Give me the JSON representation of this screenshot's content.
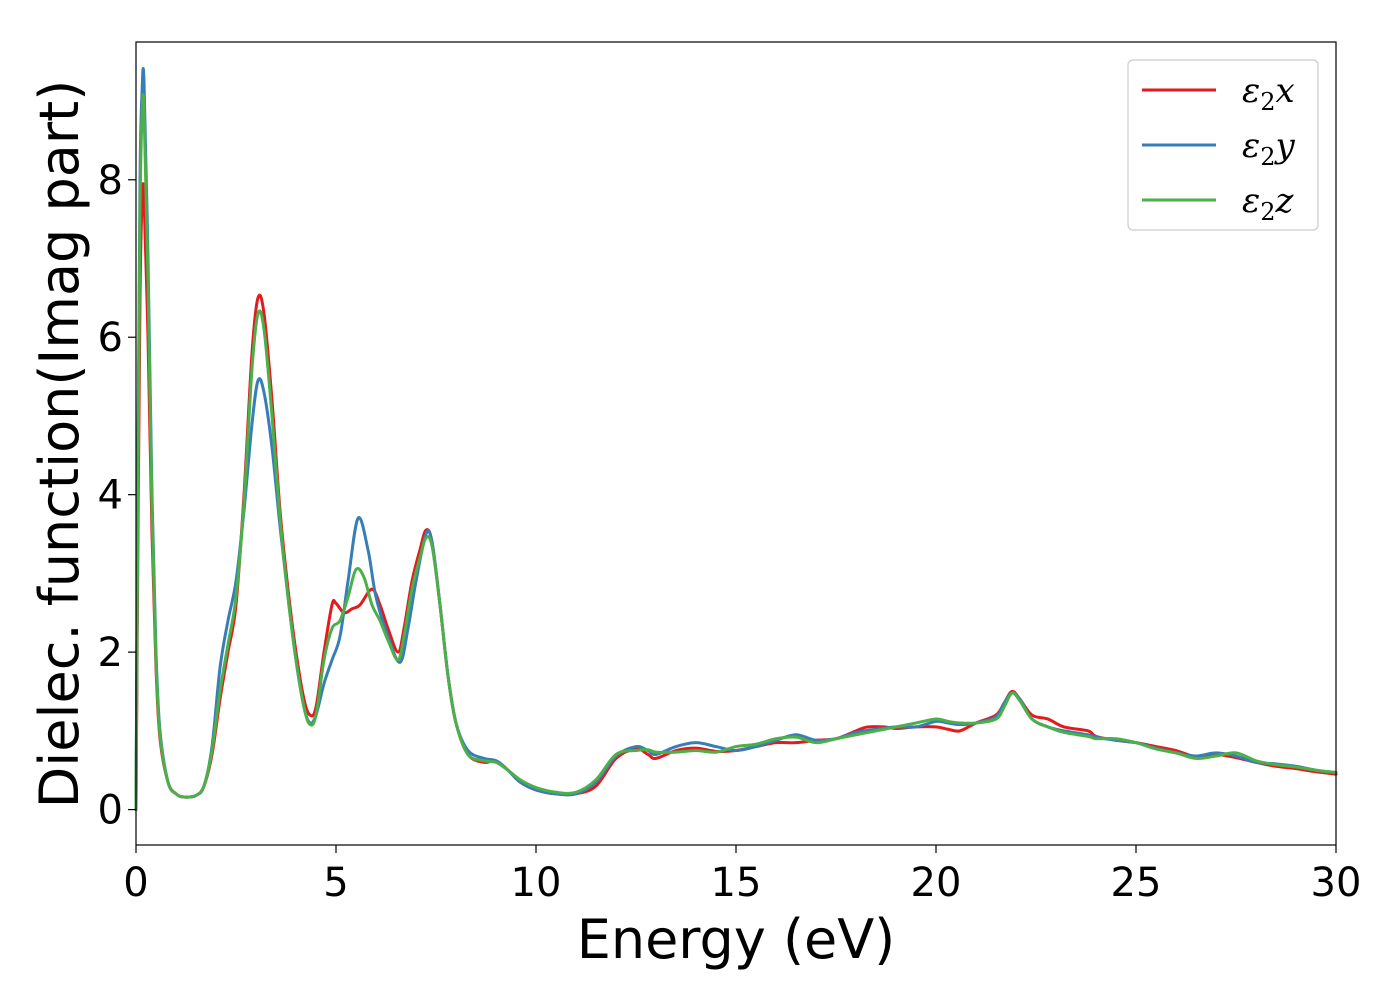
{
  "chart_data": {
    "type": "line",
    "xlabel": "Energy (eV)",
    "ylabel": "Dielec. function(Imag part)",
    "xlim": [
      0,
      30
    ],
    "ylim": [
      -0.45,
      9.75
    ],
    "xticks": [
      0,
      5,
      10,
      15,
      20,
      25,
      30
    ],
    "yticks": [
      0,
      2,
      4,
      6,
      8
    ],
    "grid": false,
    "legend_position": "top-right",
    "series": [
      {
        "name": "ε₂x",
        "legend_base": "ε",
        "legend_sub": "2",
        "legend_suffix": "x",
        "color": "#e41a1c",
        "points": [
          [
            0,
            0
          ],
          [
            0.05,
            3.5
          ],
          [
            0.1,
            6.5
          ],
          [
            0.15,
            7.7
          ],
          [
            0.2,
            7.8
          ],
          [
            0.3,
            6.0
          ],
          [
            0.4,
            3.5
          ],
          [
            0.5,
            1.8
          ],
          [
            0.6,
            0.9
          ],
          [
            0.8,
            0.35
          ],
          [
            1.0,
            0.2
          ],
          [
            1.2,
            0.16
          ],
          [
            1.5,
            0.18
          ],
          [
            1.7,
            0.3
          ],
          [
            1.9,
            0.7
          ],
          [
            2.1,
            1.4
          ],
          [
            2.3,
            2.0
          ],
          [
            2.5,
            2.6
          ],
          [
            2.7,
            4.0
          ],
          [
            2.9,
            5.8
          ],
          [
            3.05,
            6.5
          ],
          [
            3.2,
            6.3
          ],
          [
            3.4,
            5.2
          ],
          [
            3.6,
            3.8
          ],
          [
            3.8,
            2.8
          ],
          [
            4.0,
            2.0
          ],
          [
            4.2,
            1.4
          ],
          [
            4.35,
            1.2
          ],
          [
            4.5,
            1.3
          ],
          [
            4.7,
            2.0
          ],
          [
            4.9,
            2.6
          ],
          [
            5.0,
            2.62
          ],
          [
            5.2,
            2.5
          ],
          [
            5.4,
            2.55
          ],
          [
            5.6,
            2.6
          ],
          [
            5.9,
            2.8
          ],
          [
            6.1,
            2.6
          ],
          [
            6.3,
            2.3
          ],
          [
            6.55,
            2.0
          ],
          [
            6.7,
            2.3
          ],
          [
            6.9,
            2.9
          ],
          [
            7.1,
            3.3
          ],
          [
            7.25,
            3.55
          ],
          [
            7.4,
            3.4
          ],
          [
            7.6,
            2.6
          ],
          [
            7.8,
            1.7
          ],
          [
            8.0,
            1.1
          ],
          [
            8.3,
            0.7
          ],
          [
            8.7,
            0.6
          ],
          [
            9.0,
            0.62
          ],
          [
            9.3,
            0.5
          ],
          [
            9.6,
            0.35
          ],
          [
            10.0,
            0.25
          ],
          [
            10.5,
            0.2
          ],
          [
            11.0,
            0.2
          ],
          [
            11.5,
            0.3
          ],
          [
            12.0,
            0.65
          ],
          [
            12.5,
            0.77
          ],
          [
            12.8,
            0.7
          ],
          [
            13.0,
            0.65
          ],
          [
            13.5,
            0.75
          ],
          [
            14.0,
            0.78
          ],
          [
            14.5,
            0.74
          ],
          [
            15.0,
            0.75
          ],
          [
            15.5,
            0.8
          ],
          [
            16.0,
            0.85
          ],
          [
            16.5,
            0.85
          ],
          [
            17.0,
            0.88
          ],
          [
            17.5,
            0.9
          ],
          [
            18.0,
            1.0
          ],
          [
            18.3,
            1.05
          ],
          [
            18.7,
            1.05
          ],
          [
            19.0,
            1.03
          ],
          [
            19.5,
            1.05
          ],
          [
            20.0,
            1.05
          ],
          [
            20.3,
            1.02
          ],
          [
            20.6,
            1.0
          ],
          [
            21.0,
            1.1
          ],
          [
            21.5,
            1.2
          ],
          [
            21.7,
            1.35
          ],
          [
            21.9,
            1.5
          ],
          [
            22.1,
            1.4
          ],
          [
            22.4,
            1.2
          ],
          [
            22.8,
            1.15
          ],
          [
            23.2,
            1.05
          ],
          [
            23.8,
            1.0
          ],
          [
            24.0,
            0.93
          ],
          [
            24.5,
            0.88
          ],
          [
            25.0,
            0.85
          ],
          [
            25.5,
            0.8
          ],
          [
            26.0,
            0.75
          ],
          [
            26.5,
            0.67
          ],
          [
            27.0,
            0.7
          ],
          [
            27.5,
            0.66
          ],
          [
            28.0,
            0.6
          ],
          [
            28.5,
            0.55
          ],
          [
            29.0,
            0.52
          ],
          [
            29.5,
            0.48
          ],
          [
            30.0,
            0.45
          ]
        ]
      },
      {
        "name": "ε₂y",
        "legend_base": "ε",
        "legend_sub": "2",
        "legend_suffix": "y",
        "color": "#377eb8",
        "points": [
          [
            0,
            0
          ],
          [
            0.05,
            4.5
          ],
          [
            0.1,
            8.0
          ],
          [
            0.15,
            9.1
          ],
          [
            0.2,
            9.25
          ],
          [
            0.3,
            7.0
          ],
          [
            0.4,
            4.0
          ],
          [
            0.5,
            2.0
          ],
          [
            0.6,
            1.0
          ],
          [
            0.8,
            0.35
          ],
          [
            1.0,
            0.2
          ],
          [
            1.2,
            0.16
          ],
          [
            1.5,
            0.18
          ],
          [
            1.7,
            0.3
          ],
          [
            1.9,
            0.8
          ],
          [
            2.1,
            1.8
          ],
          [
            2.3,
            2.4
          ],
          [
            2.5,
            2.9
          ],
          [
            2.7,
            3.8
          ],
          [
            2.9,
            4.9
          ],
          [
            3.05,
            5.45
          ],
          [
            3.2,
            5.3
          ],
          [
            3.4,
            4.6
          ],
          [
            3.6,
            3.6
          ],
          [
            3.8,
            2.7
          ],
          [
            4.0,
            1.9
          ],
          [
            4.2,
            1.3
          ],
          [
            4.35,
            1.1
          ],
          [
            4.5,
            1.2
          ],
          [
            4.7,
            1.6
          ],
          [
            4.9,
            1.9
          ],
          [
            5.1,
            2.2
          ],
          [
            5.3,
            2.9
          ],
          [
            5.55,
            3.7
          ],
          [
            5.8,
            3.3
          ],
          [
            6.0,
            2.7
          ],
          [
            6.3,
            2.2
          ],
          [
            6.6,
            1.87
          ],
          [
            6.8,
            2.3
          ],
          [
            7.0,
            2.9
          ],
          [
            7.25,
            3.5
          ],
          [
            7.4,
            3.4
          ],
          [
            7.6,
            2.6
          ],
          [
            7.8,
            1.7
          ],
          [
            8.0,
            1.1
          ],
          [
            8.3,
            0.75
          ],
          [
            8.7,
            0.65
          ],
          [
            9.0,
            0.62
          ],
          [
            9.3,
            0.5
          ],
          [
            9.6,
            0.35
          ],
          [
            10.0,
            0.25
          ],
          [
            10.5,
            0.2
          ],
          [
            11.0,
            0.2
          ],
          [
            11.5,
            0.35
          ],
          [
            12.0,
            0.68
          ],
          [
            12.5,
            0.8
          ],
          [
            12.8,
            0.75
          ],
          [
            13.0,
            0.7
          ],
          [
            13.5,
            0.8
          ],
          [
            14.0,
            0.85
          ],
          [
            14.5,
            0.8
          ],
          [
            15.0,
            0.75
          ],
          [
            15.5,
            0.8
          ],
          [
            16.0,
            0.88
          ],
          [
            16.5,
            0.95
          ],
          [
            17.0,
            0.88
          ],
          [
            17.5,
            0.9
          ],
          [
            18.0,
            0.98
          ],
          [
            18.5,
            1.02
          ],
          [
            19.0,
            1.05
          ],
          [
            19.5,
            1.05
          ],
          [
            20.0,
            1.12
          ],
          [
            20.3,
            1.1
          ],
          [
            20.6,
            1.08
          ],
          [
            21.0,
            1.1
          ],
          [
            21.5,
            1.18
          ],
          [
            21.7,
            1.35
          ],
          [
            21.9,
            1.48
          ],
          [
            22.1,
            1.4
          ],
          [
            22.4,
            1.15
          ],
          [
            22.8,
            1.05
          ],
          [
            23.2,
            1.0
          ],
          [
            23.8,
            0.95
          ],
          [
            24.0,
            0.92
          ],
          [
            24.5,
            0.88
          ],
          [
            25.0,
            0.85
          ],
          [
            25.5,
            0.78
          ],
          [
            26.0,
            0.72
          ],
          [
            26.5,
            0.68
          ],
          [
            27.0,
            0.72
          ],
          [
            27.5,
            0.68
          ],
          [
            28.0,
            0.6
          ],
          [
            28.5,
            0.58
          ],
          [
            29.0,
            0.55
          ],
          [
            29.5,
            0.5
          ],
          [
            30.0,
            0.47
          ]
        ]
      },
      {
        "name": "ε₂z",
        "legend_base": "ε",
        "legend_sub": "2",
        "legend_suffix": "z",
        "color": "#4daf4a",
        "points": [
          [
            0,
            0
          ],
          [
            0.05,
            4.2
          ],
          [
            0.1,
            7.6
          ],
          [
            0.15,
            8.8
          ],
          [
            0.2,
            8.9
          ],
          [
            0.3,
            6.7
          ],
          [
            0.4,
            3.8
          ],
          [
            0.5,
            1.9
          ],
          [
            0.6,
            0.95
          ],
          [
            0.8,
            0.35
          ],
          [
            1.0,
            0.2
          ],
          [
            1.2,
            0.16
          ],
          [
            1.5,
            0.18
          ],
          [
            1.7,
            0.3
          ],
          [
            1.9,
            0.75
          ],
          [
            2.1,
            1.5
          ],
          [
            2.3,
            2.1
          ],
          [
            2.5,
            2.7
          ],
          [
            2.7,
            3.9
          ],
          [
            2.9,
            5.6
          ],
          [
            3.05,
            6.3
          ],
          [
            3.2,
            6.1
          ],
          [
            3.4,
            5.0
          ],
          [
            3.6,
            3.7
          ],
          [
            3.8,
            2.7
          ],
          [
            4.0,
            1.9
          ],
          [
            4.2,
            1.3
          ],
          [
            4.35,
            1.08
          ],
          [
            4.5,
            1.2
          ],
          [
            4.7,
            1.9
          ],
          [
            4.9,
            2.3
          ],
          [
            5.1,
            2.4
          ],
          [
            5.3,
            2.7
          ],
          [
            5.5,
            3.05
          ],
          [
            5.7,
            2.95
          ],
          [
            5.9,
            2.6
          ],
          [
            6.1,
            2.4
          ],
          [
            6.3,
            2.15
          ],
          [
            6.55,
            1.9
          ],
          [
            6.7,
            2.2
          ],
          [
            6.9,
            2.8
          ],
          [
            7.1,
            3.2
          ],
          [
            7.25,
            3.45
          ],
          [
            7.4,
            3.35
          ],
          [
            7.6,
            2.6
          ],
          [
            7.8,
            1.7
          ],
          [
            8.0,
            1.1
          ],
          [
            8.3,
            0.7
          ],
          [
            8.7,
            0.62
          ],
          [
            9.0,
            0.6
          ],
          [
            9.3,
            0.5
          ],
          [
            9.6,
            0.38
          ],
          [
            10.0,
            0.28
          ],
          [
            10.5,
            0.22
          ],
          [
            11.0,
            0.22
          ],
          [
            11.5,
            0.38
          ],
          [
            12.0,
            0.7
          ],
          [
            12.5,
            0.75
          ],
          [
            12.8,
            0.76
          ],
          [
            13.0,
            0.73
          ],
          [
            13.5,
            0.73
          ],
          [
            14.0,
            0.75
          ],
          [
            14.5,
            0.73
          ],
          [
            15.0,
            0.8
          ],
          [
            15.5,
            0.83
          ],
          [
            16.0,
            0.9
          ],
          [
            16.5,
            0.92
          ],
          [
            17.0,
            0.85
          ],
          [
            17.5,
            0.9
          ],
          [
            18.0,
            0.95
          ],
          [
            18.5,
            1.0
          ],
          [
            19.0,
            1.05
          ],
          [
            19.5,
            1.1
          ],
          [
            20.0,
            1.15
          ],
          [
            20.3,
            1.12
          ],
          [
            20.6,
            1.1
          ],
          [
            21.0,
            1.1
          ],
          [
            21.5,
            1.15
          ],
          [
            21.7,
            1.3
          ],
          [
            21.9,
            1.48
          ],
          [
            22.1,
            1.38
          ],
          [
            22.4,
            1.15
          ],
          [
            22.8,
            1.05
          ],
          [
            23.2,
            0.98
          ],
          [
            23.8,
            0.93
          ],
          [
            24.0,
            0.9
          ],
          [
            24.5,
            0.9
          ],
          [
            25.0,
            0.85
          ],
          [
            25.5,
            0.77
          ],
          [
            26.0,
            0.72
          ],
          [
            26.5,
            0.65
          ],
          [
            27.0,
            0.68
          ],
          [
            27.5,
            0.72
          ],
          [
            28.0,
            0.62
          ],
          [
            28.5,
            0.57
          ],
          [
            29.0,
            0.54
          ],
          [
            29.5,
            0.5
          ],
          [
            30.0,
            0.47
          ]
        ]
      }
    ]
  }
}
